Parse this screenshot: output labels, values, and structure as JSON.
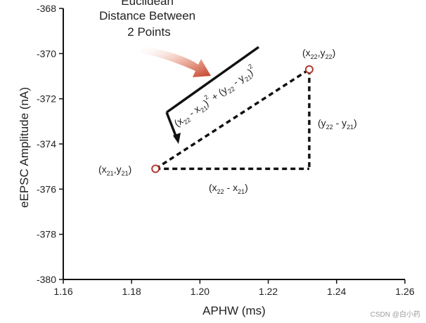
{
  "chart_data": {
    "type": "scatter",
    "title": "",
    "xlabel": "APHW (ms)",
    "ylabel": "eEPSC Amplitude (nA)",
    "xlim": [
      1.16,
      1.26
    ],
    "ylim": [
      -380,
      -368
    ],
    "x_ticks": [
      1.16,
      1.18,
      1.2,
      1.22,
      1.24,
      1.26
    ],
    "x_tick_labels": [
      "1.16",
      "1.18",
      "1.20",
      "1.22",
      "1.24",
      "1.26"
    ],
    "y_ticks": [
      -368,
      -370,
      -372,
      -374,
      -376,
      -378,
      -380
    ],
    "y_tick_labels": [
      "-368",
      "-370",
      "-372",
      "-374",
      "-376",
      "-378",
      "-380"
    ],
    "grid": false,
    "points": [
      {
        "x": 1.187,
        "y": -375.1,
        "label": "(x21,y21)"
      },
      {
        "x": 1.232,
        "y": -370.7,
        "label": "(x22,y22)"
      }
    ],
    "annotations": {
      "euclidean_title": [
        "Euclidean",
        "Distance Between",
        "2 Points"
      ],
      "horizontal_leg": "(x22 - x21)",
      "vertical_leg": "(y22 - y21)",
      "formula": "(x22 - x21)^2 + (y22 - y21)^2"
    },
    "colors": {
      "marker": "#b23a2e",
      "arrow": "#c84a33",
      "dashed": "#111111",
      "axis": "#111111"
    }
  },
  "watermark": "CSDN @白小药"
}
